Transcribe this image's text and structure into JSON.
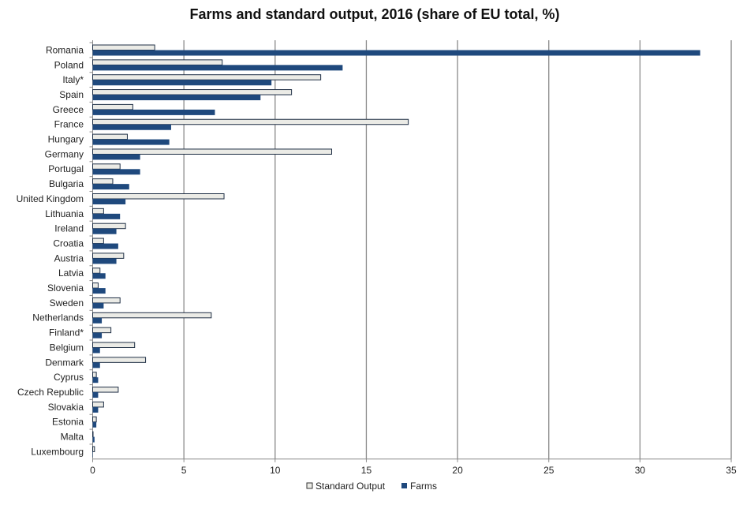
{
  "chart_data": {
    "type": "bar",
    "orientation": "horizontal",
    "title": "Farms and standard output, 2016 (share of EU total, %)",
    "xlabel": "",
    "ylabel": "",
    "xlim": [
      0,
      35
    ],
    "xticks": [
      0,
      5,
      10,
      15,
      20,
      25,
      30,
      35
    ],
    "grid": "vertical",
    "legend_position": "bottom",
    "categories": [
      "Romania",
      "Poland",
      "Italy*",
      "Spain",
      "Greece",
      "France",
      "Hungary",
      "Germany",
      "Portugal",
      "Bulgaria",
      "United Kingdom",
      "Lithuania",
      "Ireland",
      "Croatia",
      "Austria",
      "Latvia",
      "Slovenia",
      "Sweden",
      "Netherlands",
      "Finland*",
      "Belgium",
      "Denmark",
      "Cyprus",
      "Czech Republic",
      "Slovakia",
      "Estonia",
      "Malta",
      "Luxembourg"
    ],
    "series": [
      {
        "name": "Standard Output",
        "color": "#ebebe6",
        "values": [
          3.4,
          7.1,
          12.5,
          10.9,
          2.2,
          17.3,
          1.9,
          13.1,
          1.5,
          1.1,
          7.2,
          0.6,
          1.8,
          0.6,
          1.7,
          0.4,
          0.3,
          1.5,
          6.5,
          1.0,
          2.3,
          2.9,
          0.2,
          1.4,
          0.6,
          0.2,
          0.02,
          0.1
        ]
      },
      {
        "name": "Farms",
        "color": "#1f497d",
        "values": [
          33.3,
          13.7,
          9.8,
          9.2,
          6.7,
          4.3,
          4.2,
          2.6,
          2.6,
          2.0,
          1.8,
          1.5,
          1.3,
          1.4,
          1.3,
          0.7,
          0.7,
          0.6,
          0.5,
          0.5,
          0.4,
          0.4,
          0.3,
          0.3,
          0.3,
          0.2,
          0.1,
          0.01
        ]
      }
    ]
  }
}
